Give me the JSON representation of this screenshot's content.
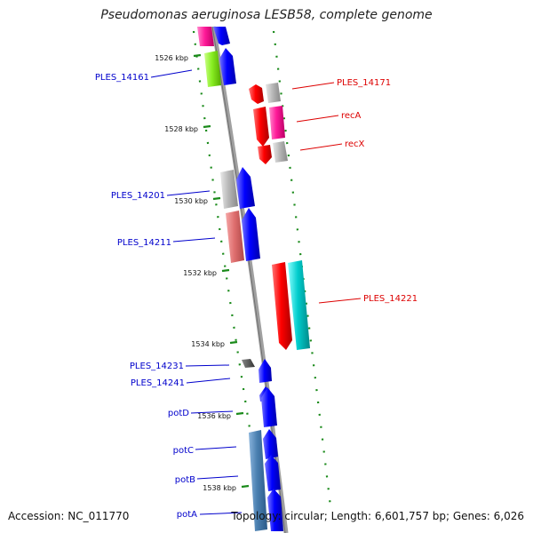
{
  "map": {
    "title": "Pseudomonas aeruginosa LESB58, complete genome",
    "accession": "Accession: NC_011770",
    "summary": "Topology: circular; Length: 6,601,757 bp; Genes: 6,026",
    "ruler_ticks": [
      "1526 kbp",
      "1528 kbp",
      "1530 kbp",
      "1532 kbp",
      "1534 kbp",
      "1536 kbp",
      "1538 kbp"
    ],
    "labels_left": [
      "PLES_14161",
      "PLES_14201",
      "PLES_14211",
      "PLES_14231",
      "PLES_14241",
      "potD",
      "potC",
      "potB",
      "potA"
    ],
    "labels_right": [
      "PLES_14171",
      "recA",
      "recX",
      "PLES_14221"
    ],
    "colors": {
      "forward_label": "#0000cc",
      "reverse_label": "#dd0000",
      "backbone": "#909090",
      "ruler_dots": "#1a8a1a",
      "cds_blue": "#0000ff",
      "cds_red": "#ff0000",
      "cds_magenta": "#ff1a99",
      "cds_green": "#88ee22",
      "cds_cyan": "#00cccc",
      "cds_gray": "#b8b8b8",
      "cds_pink": "#e07070",
      "cds_steel": "#4a7fb0"
    }
  }
}
